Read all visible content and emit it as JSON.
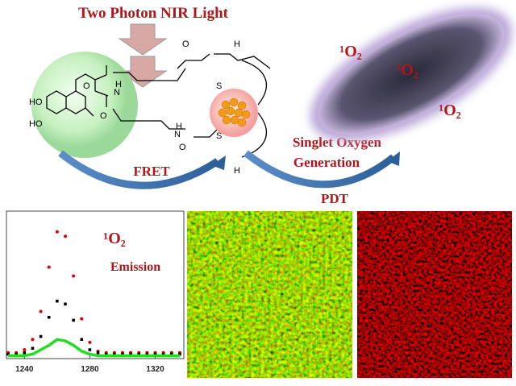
{
  "header": {
    "title": "Two Photon NIR Light"
  },
  "labels": {
    "fret": "FRET",
    "singlet_oxygen": "Singlet Oxygen",
    "generation": "Generation",
    "pdt": "PDT",
    "bacteria_o2": [
      "¹O₂",
      "¹O₂",
      "¹O₂"
    ]
  },
  "molecule": {
    "atoms": [
      "HO",
      "HO",
      "O",
      "N",
      "H",
      "N",
      "H",
      "O",
      "O",
      "O",
      "S",
      "S",
      "H",
      "H"
    ]
  },
  "chart_data": {
    "type": "scatter",
    "annotation": "¹O₂",
    "annotation2": "Emission",
    "x": [
      1230,
      1235,
      1240,
      1245,
      1250,
      1255,
      1260,
      1265,
      1270,
      1275,
      1280,
      1285,
      1290,
      1295,
      1300,
      1305,
      1310,
      1315,
      1320,
      1325,
      1330,
      1335
    ],
    "series": [
      {
        "color": "#e00000",
        "marker": "circle",
        "values": [
          0.04,
          0.04,
          0.06,
          0.13,
          0.32,
          0.62,
          0.86,
          0.83,
          0.56,
          0.27,
          0.11,
          0.05,
          0.04,
          0.04,
          0.04,
          0.04,
          0.04,
          0.04,
          0.04,
          0.04,
          0.04,
          0.04
        ]
      },
      {
        "color": "#000000",
        "marker": "square",
        "values": [
          0.03,
          0.03,
          0.04,
          0.07,
          0.15,
          0.28,
          0.39,
          0.37,
          0.26,
          0.13,
          0.06,
          0.04,
          0.03,
          0.03,
          0.03,
          0.03,
          0.03,
          0.03,
          0.03,
          0.03,
          0.03,
          0.03
        ]
      },
      {
        "color": "#22dd22",
        "marker": "line",
        "values": [
          0.02,
          0.02,
          0.02,
          0.03,
          0.06,
          0.09,
          0.13,
          0.12,
          0.09,
          0.05,
          0.03,
          0.02,
          0.02,
          0.02,
          0.02,
          0.02,
          0.02,
          0.02,
          0.02,
          0.02,
          0.02,
          0.02
        ]
      }
    ],
    "xlim": [
      1229,
      1337.5
    ],
    "ylim": [
      0,
      1
    ],
    "xticks": [
      1240,
      1280,
      1320
    ]
  }
}
